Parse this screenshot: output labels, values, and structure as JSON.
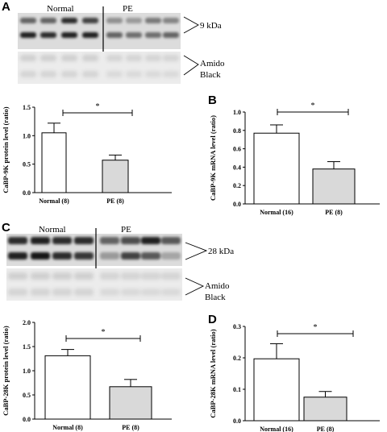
{
  "panels": {
    "A": "A",
    "B": "B",
    "C": "C",
    "D": "D"
  },
  "blots": {
    "A": {
      "normal": "Normal",
      "pe": "PE",
      "kda": "9 kDa",
      "amido1": "Amido",
      "amido2": "Black"
    },
    "C": {
      "normal": "Normal",
      "pe": "PE",
      "kda": "28 kDa",
      "amido1": "Amido",
      "amido2": "Black"
    }
  },
  "chart_data": [
    {
      "panel": "A",
      "type": "bar",
      "categories": [
        "Normal (8)",
        "PE (8)"
      ],
      "values": [
        1.05,
        0.57
      ],
      "errors": [
        0.17,
        0.09
      ],
      "ylabel": "CaBP-9K protein level (ratio)",
      "ylim": [
        0,
        1.5
      ],
      "yticks": [
        "0.0",
        "0.5",
        "1.0",
        "1.5"
      ],
      "yticks_values": [
        0,
        0.5,
        1.0,
        1.5
      ],
      "significance": "*",
      "bar_colors": [
        "#ffffff",
        "#d9d9d9"
      ]
    },
    {
      "panel": "B",
      "type": "bar",
      "categories": [
        "Normal (16)",
        "PE (8)"
      ],
      "values": [
        0.77,
        0.38
      ],
      "errors": [
        0.09,
        0.08
      ],
      "ylabel": "CaBP-9K mRNA level (ratio)",
      "ylim": [
        0,
        1.0
      ],
      "yticks": [
        "0.0",
        "0.2",
        "0.4",
        "0.6",
        "0.8",
        "1.0"
      ],
      "yticks_values": [
        0,
        0.2,
        0.4,
        0.6,
        0.8,
        1.0
      ],
      "significance": "*",
      "bar_colors": [
        "#ffffff",
        "#d9d9d9"
      ]
    },
    {
      "panel": "C",
      "type": "bar",
      "categories": [
        "Normal (8)",
        "PE (8)"
      ],
      "values": [
        1.31,
        0.67
      ],
      "errors": [
        0.13,
        0.15
      ],
      "ylabel": "CaBP-28K protein level (ratio)",
      "ylim": [
        0,
        2.0
      ],
      "yticks": [
        "0.0",
        "0.5",
        "1.0",
        "1.5",
        "2.0"
      ],
      "yticks_values": [
        0,
        0.5,
        1.0,
        1.5,
        2.0
      ],
      "significance": "*",
      "bar_colors": [
        "#ffffff",
        "#d9d9d9"
      ]
    },
    {
      "panel": "D",
      "type": "bar",
      "categories": [
        "Normal (16)",
        "PE (8)"
      ],
      "values": [
        0.197,
        0.075
      ],
      "errors": [
        0.048,
        0.018
      ],
      "ylabel": "CaBP-28K mRNA level (ratio)",
      "ylim": [
        0,
        0.3
      ],
      "yticks": [
        "0.0",
        "0.1",
        "0.2",
        "0.3"
      ],
      "yticks_values": [
        0,
        0.1,
        0.2,
        0.3
      ],
      "significance": "*",
      "bar_colors": [
        "#ffffff",
        "#d9d9d9"
      ]
    }
  ]
}
